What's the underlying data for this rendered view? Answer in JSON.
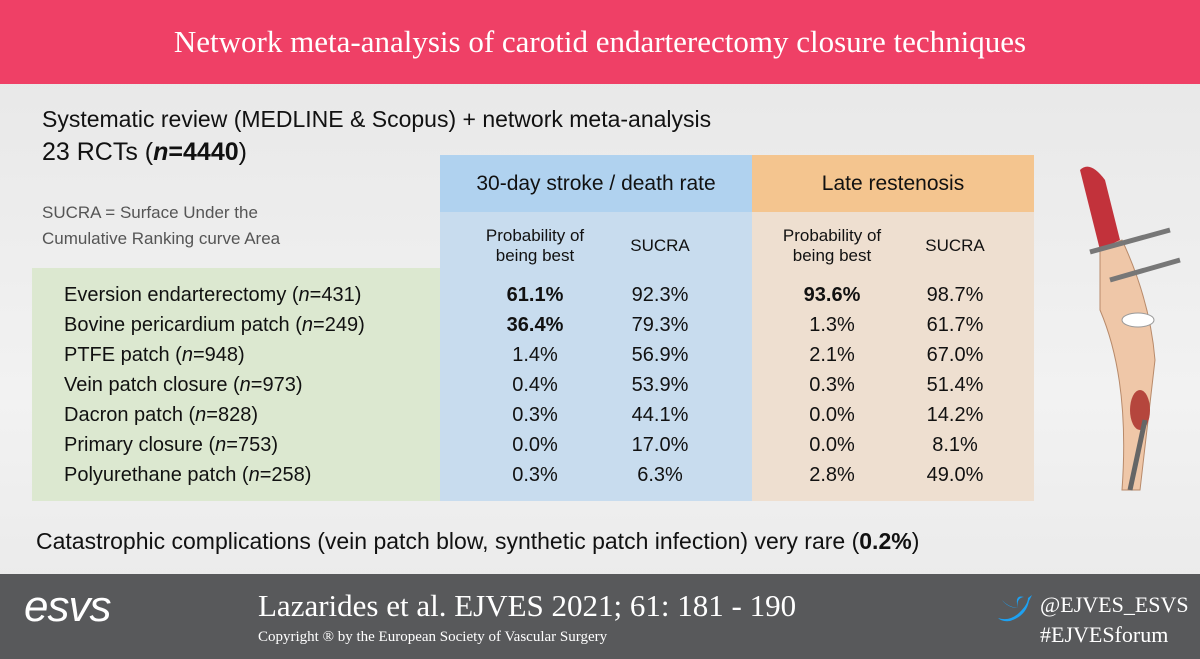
{
  "header": {
    "title": "Network meta-analysis of carotid endarterectomy closure techniques"
  },
  "intro": {
    "line1": "Systematic review (MEDLINE & Scopus) + network meta-analysis",
    "line2": [
      "23 RCTs (",
      "n",
      "=4440",
      ")"
    ]
  },
  "note": "SUCRA = Surface Under the Cumulative Ranking curve Area",
  "table": {
    "groups": [
      "30-day stroke / death rate",
      "Late restenosis"
    ],
    "columns": [
      "Probability of being best",
      "SUCRA",
      "Probability of being best",
      "SUCRA"
    ],
    "rows": [
      {
        "name": [
          "Eversion endarterectomy (",
          "n",
          "=431)"
        ],
        "values": [
          "61.1%",
          "92.3%",
          "93.6%",
          "98.7%"
        ],
        "bold": [
          0,
          2
        ]
      },
      {
        "name": [
          "Bovine pericardium patch (",
          "n",
          "=249)"
        ],
        "values": [
          "36.4%",
          "79.3%",
          "1.3%",
          "61.7%"
        ],
        "bold": [
          0
        ]
      },
      {
        "name": [
          "PTFE patch (",
          "n",
          "=948)"
        ],
        "values": [
          "1.4%",
          "56.9%",
          "2.1%",
          "67.0%"
        ],
        "bold": []
      },
      {
        "name": [
          "Vein patch closure (",
          "n",
          "=973)"
        ],
        "values": [
          "0.4%",
          "53.9%",
          "0.3%",
          "51.4%"
        ],
        "bold": []
      },
      {
        "name": [
          "Dacron patch (",
          "n",
          "=828)"
        ],
        "values": [
          "0.3%",
          "44.1%",
          "0.0%",
          "14.2%"
        ],
        "bold": []
      },
      {
        "name": [
          "Primary closure (",
          "n",
          "=753)"
        ],
        "values": [
          "0.0%",
          "17.0%",
          "0.0%",
          "8.1%"
        ],
        "bold": []
      },
      {
        "name": [
          "Polyurethane patch (",
          "n",
          "=258)"
        ],
        "values": [
          "0.3%",
          "6.3%",
          "2.8%",
          "49.0%"
        ],
        "bold": []
      }
    ]
  },
  "conclusion": [
    "Catastrophic complications (vein patch blow, synthetic patch infection) very rare (",
    "0.2%",
    ")"
  ],
  "footer": {
    "logo": "esvs",
    "citation": "Lazarides et al. EJVES 2021; 61: 181 - 190",
    "copyright": "Copyright ® by the European Society of Vascular Surgery",
    "handles": [
      "@EJVES_ESVS",
      "#EJVESforum"
    ]
  }
}
